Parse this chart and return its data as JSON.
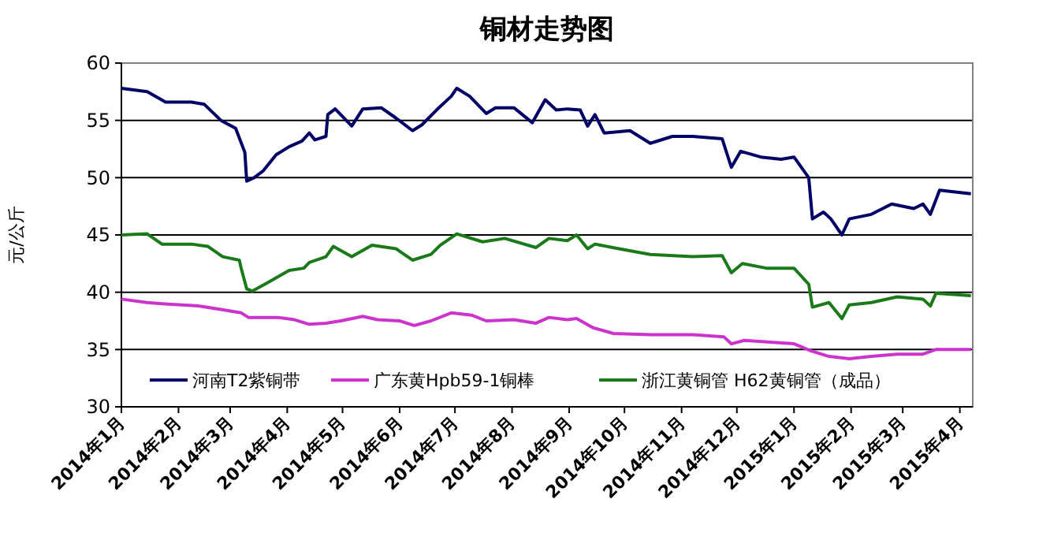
{
  "chart_data": {
    "type": "line",
    "title": "铜材走势图",
    "ylabel": "元/公斤",
    "xlim": [
      "2014-01-01",
      "2015-04-08"
    ],
    "xticks": [
      {
        "value": "2014-01-01",
        "label": "2014年1月"
      },
      {
        "value": "2014-02-01",
        "label": "2014年2月"
      },
      {
        "value": "2014-03-01",
        "label": "2014年3月"
      },
      {
        "value": "2014-04-01",
        "label": "2014年4月"
      },
      {
        "value": "2014-05-01",
        "label": "2014年5月"
      },
      {
        "value": "2014-06-01",
        "label": "2014年6月"
      },
      {
        "value": "2014-07-01",
        "label": "2014年7月"
      },
      {
        "value": "2014-08-01",
        "label": "2014年8月"
      },
      {
        "value": "2014-09-01",
        "label": "2014年9月"
      },
      {
        "value": "2014-10-01",
        "label": "2014年10月"
      },
      {
        "value": "2014-11-01",
        "label": "2014年11月"
      },
      {
        "value": "2014-12-01",
        "label": "2014年12月"
      },
      {
        "value": "2015-01-01",
        "label": "2015年1月"
      },
      {
        "value": "2015-02-01",
        "label": "2015年2月"
      },
      {
        "value": "2015-03-01",
        "label": "2015年3月"
      },
      {
        "value": "2015-04-01",
        "label": "2015年4月"
      }
    ],
    "ylim": [
      30,
      60
    ],
    "yticks": [
      30,
      35,
      40,
      45,
      50,
      55,
      60
    ],
    "grid": "y",
    "legend": "bottom",
    "marker": "none",
    "line_style": "solid",
    "series": [
      {
        "name": "河南T2紫铜带",
        "color": "#000066",
        "x": [
          "2014-01-01",
          "2014-01-15",
          "2014-01-25",
          "2014-02-08",
          "2014-02-15",
          "2014-02-24",
          "2014-03-04",
          "2014-03-09",
          "2014-03-10",
          "2014-03-14",
          "2014-03-19",
          "2014-03-26",
          "2014-04-02",
          "2014-04-09",
          "2014-04-13",
          "2014-04-16",
          "2014-04-22",
          "2014-04-23",
          "2014-04-27",
          "2014-05-06",
          "2014-05-12",
          "2014-05-22",
          "2014-05-30",
          "2014-06-08",
          "2014-06-13",
          "2014-06-21",
          "2014-06-29",
          "2014-07-02",
          "2014-07-09",
          "2014-07-18",
          "2014-07-23",
          "2014-08-02",
          "2014-08-12",
          "2014-08-19",
          "2014-08-25",
          "2014-08-31",
          "2014-09-07",
          "2014-09-11",
          "2014-09-15",
          "2014-09-20",
          "2014-10-04",
          "2014-10-15",
          "2014-10-27",
          "2014-11-07",
          "2014-11-23",
          "2014-11-28",
          "2014-12-03",
          "2014-12-14",
          "2014-12-25",
          "2015-01-01",
          "2015-01-09",
          "2015-01-11",
          "2015-01-17",
          "2015-01-21",
          "2015-01-27",
          "2015-01-31",
          "2015-02-12",
          "2015-02-23",
          "2015-03-07",
          "2015-03-12",
          "2015-03-16",
          "2015-03-21",
          "2015-04-07"
        ],
        "values": [
          57.8,
          57.5,
          56.6,
          56.6,
          56.4,
          55,
          54.3,
          52.2,
          49.7,
          50,
          50.6,
          52,
          52.7,
          53.2,
          53.9,
          53.3,
          53.6,
          55.5,
          56,
          54.5,
          56,
          56.1,
          55.2,
          54.1,
          54.6,
          55.9,
          57.1,
          57.8,
          57.1,
          55.6,
          56.1,
          56.1,
          54.8,
          56.8,
          55.9,
          56,
          55.9,
          54.5,
          55.5,
          53.9,
          54.1,
          53,
          53.6,
          53.6,
          53.4,
          50.9,
          52.3,
          51.8,
          51.6,
          51.8,
          50,
          46.4,
          47,
          46.4,
          45,
          46.4,
          46.8,
          47.7,
          47.3,
          47.7,
          46.8,
          48.9,
          48.6
        ]
      },
      {
        "name": "广东黄Hpb59-1铜棒",
        "color": "#cc33cc",
        "x": [
          "2014-01-01",
          "2014-01-15",
          "2014-01-23",
          "2014-02-12",
          "2014-02-24",
          "2014-03-07",
          "2014-03-11",
          "2014-03-27",
          "2014-04-05",
          "2014-04-13",
          "2014-04-22",
          "2014-04-30",
          "2014-05-12",
          "2014-05-20",
          "2014-06-01",
          "2014-06-09",
          "2014-06-18",
          "2014-06-29",
          "2014-07-10",
          "2014-07-18",
          "2014-08-02",
          "2014-08-14",
          "2014-08-21",
          "2014-08-31",
          "2014-09-05",
          "2014-09-14",
          "2014-09-25",
          "2014-10-15",
          "2014-11-07",
          "2014-11-24",
          "2014-11-28",
          "2014-12-05",
          "2015-01-01",
          "2015-01-10",
          "2015-01-20",
          "2015-01-31",
          "2015-02-12",
          "2015-02-26",
          "2015-03-12",
          "2015-03-19",
          "2015-04-07"
        ],
        "values": [
          39.4,
          39.1,
          39,
          38.8,
          38.5,
          38.2,
          37.8,
          37.8,
          37.6,
          37.2,
          37.3,
          37.5,
          37.9,
          37.6,
          37.5,
          37.1,
          37.5,
          38.2,
          38,
          37.5,
          37.6,
          37.3,
          37.8,
          37.6,
          37.7,
          36.9,
          36.4,
          36.3,
          36.3,
          36.1,
          35.5,
          35.8,
          35.5,
          34.9,
          34.4,
          34.2,
          34.4,
          34.6,
          34.6,
          35,
          35
        ]
      },
      {
        "name": "浙江黄铜管 H62黄铜管（成品）",
        "color": "#1a7a1a",
        "x": [
          "2014-01-01",
          "2014-01-15",
          "2014-01-23",
          "2014-02-08",
          "2014-02-17",
          "2014-02-25",
          "2014-03-06",
          "2014-03-07",
          "2014-03-10",
          "2014-03-13",
          "2014-03-21",
          "2014-04-02",
          "2014-04-10",
          "2014-04-13",
          "2014-04-22",
          "2014-04-26",
          "2014-05-06",
          "2014-05-17",
          "2014-05-30",
          "2014-06-08",
          "2014-06-18",
          "2014-06-23",
          "2014-07-02",
          "2014-07-16",
          "2014-07-28",
          "2014-08-14",
          "2014-08-21",
          "2014-08-31",
          "2014-09-05",
          "2014-09-11",
          "2014-09-15",
          "2014-09-28",
          "2014-10-15",
          "2014-11-07",
          "2014-11-23",
          "2014-11-28",
          "2014-12-04",
          "2014-12-17",
          "2015-01-01",
          "2015-01-09",
          "2015-01-11",
          "2015-01-20",
          "2015-01-27",
          "2015-01-31",
          "2015-02-12",
          "2015-02-26",
          "2015-03-12",
          "2015-03-16",
          "2015-03-19",
          "2015-04-07"
        ],
        "values": [
          45,
          45.1,
          44.2,
          44.2,
          44,
          43.1,
          42.8,
          42.1,
          40.3,
          40.1,
          40.8,
          41.9,
          42.1,
          42.6,
          43.1,
          44,
          43.1,
          44.1,
          43.8,
          42.8,
          43.3,
          44.1,
          45.1,
          44.4,
          44.7,
          43.9,
          44.7,
          44.5,
          45,
          43.8,
          44.2,
          43.8,
          43.3,
          43.1,
          43.2,
          41.7,
          42.5,
          42.1,
          42.1,
          40.7,
          38.7,
          39.1,
          37.7,
          38.9,
          39.1,
          39.6,
          39.4,
          38.8,
          39.9,
          39.7
        ]
      }
    ]
  }
}
